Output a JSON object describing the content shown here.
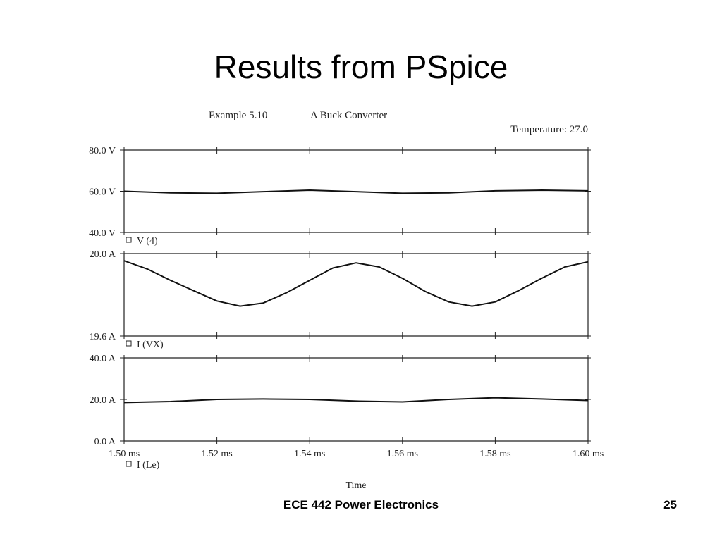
{
  "slide": {
    "title": "Results from PSpice",
    "footer": "ECE 442 Power Electronics",
    "page_number": "25"
  },
  "chart_data": {
    "type": "line",
    "title": "Example 5.10",
    "subtitle": "A Buck Converter",
    "annotation": "Temperature: 27.0",
    "xlabel": "Time",
    "x_tick_labels": [
      "1.50 ms",
      "1.52 ms",
      "1.54 ms",
      "1.56 ms",
      "1.58 ms",
      "1.60 ms"
    ],
    "xlim": [
      1.5,
      1.6
    ],
    "grid": false,
    "line_color": "#111111",
    "panels": [
      {
        "series_label": "V (4)",
        "unit": "V",
        "ylim": [
          40,
          80
        ],
        "y_tick_labels": [
          "80.0 V",
          "60.0 V",
          "40.0 V"
        ],
        "y_ticks": [
          80,
          60,
          40
        ],
        "x": [
          1.5,
          1.51,
          1.52,
          1.53,
          1.54,
          1.55,
          1.56,
          1.57,
          1.58,
          1.59,
          1.6
        ],
        "y": [
          60.0,
          59.2,
          59.0,
          59.8,
          60.5,
          59.8,
          59.0,
          59.2,
          60.2,
          60.5,
          60.2
        ]
      },
      {
        "series_label": "I (VX)",
        "unit": "A",
        "ylim": [
          19.6,
          20.0
        ],
        "y_tick_labels": [
          "20.0 A",
          "19.6 A"
        ],
        "y_ticks": [
          20.0,
          19.6
        ],
        "x": [
          1.5,
          1.505,
          1.51,
          1.515,
          1.52,
          1.525,
          1.53,
          1.535,
          1.54,
          1.545,
          1.55,
          1.555,
          1.56,
          1.565,
          1.57,
          1.575,
          1.58,
          1.585,
          1.59,
          1.595,
          1.6
        ],
        "y": [
          19.965,
          19.925,
          19.87,
          19.82,
          19.77,
          19.745,
          19.76,
          19.81,
          19.87,
          19.93,
          19.955,
          19.935,
          19.88,
          19.815,
          19.765,
          19.745,
          19.765,
          19.82,
          19.88,
          19.935,
          19.96
        ]
      },
      {
        "series_label": "I (Le)",
        "unit": "A",
        "ylim": [
          0,
          40
        ],
        "y_tick_labels": [
          "40.0 A",
          "20.0 A",
          "0.0 A"
        ],
        "y_ticks": [
          40,
          20,
          0
        ],
        "x": [
          1.5,
          1.51,
          1.52,
          1.53,
          1.54,
          1.55,
          1.56,
          1.57,
          1.58,
          1.59,
          1.6
        ],
        "y": [
          18.5,
          19.0,
          20.0,
          20.2,
          20.0,
          19.2,
          18.8,
          20.0,
          20.8,
          20.2,
          19.5
        ]
      }
    ]
  }
}
